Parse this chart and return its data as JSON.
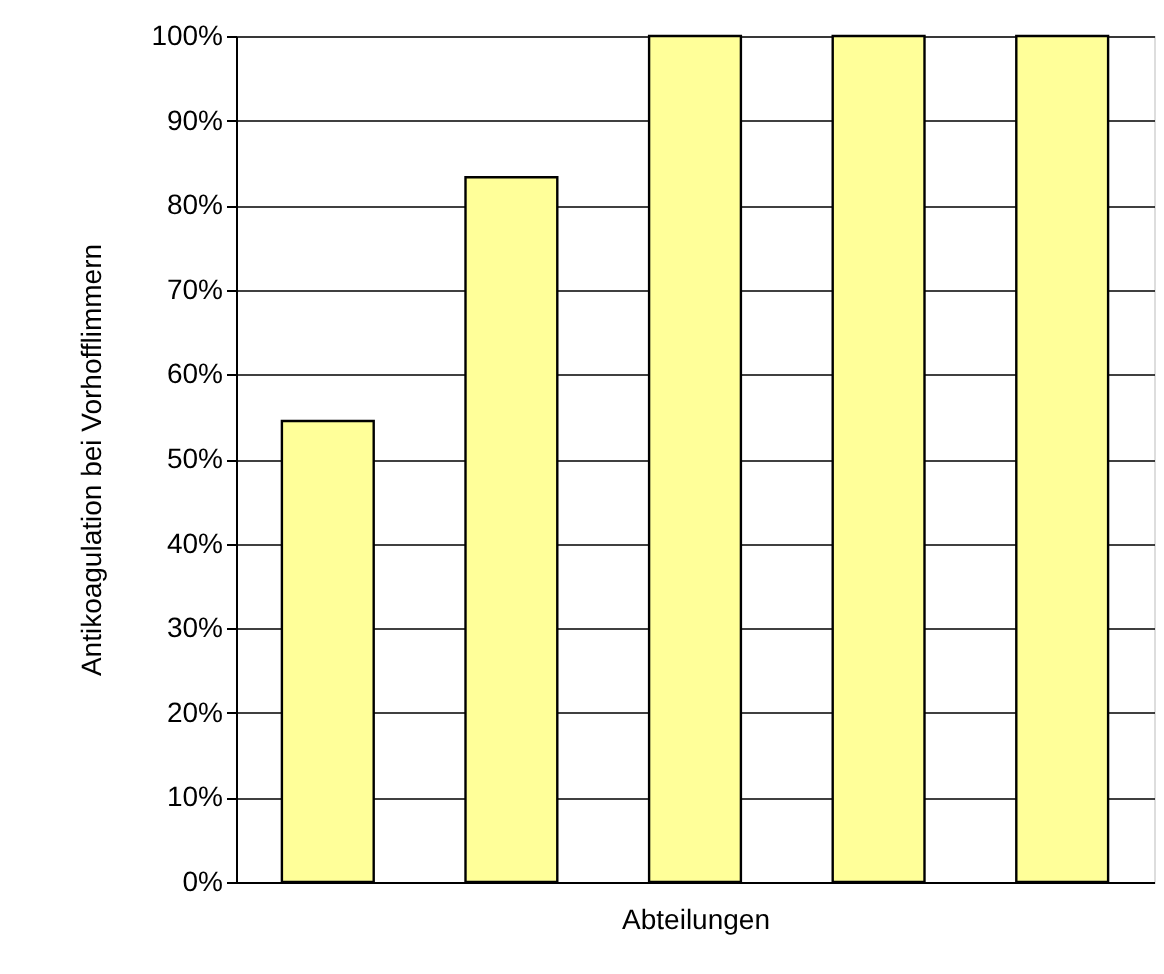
{
  "chart_data": {
    "type": "bar",
    "xlabel": "Abteilungen",
    "ylabel": "Antikoagulation bei Vorhofflimmern",
    "categories": [
      null,
      null,
      null,
      null,
      null
    ],
    "values": [
      54.5,
      83.3,
      100,
      100,
      100
    ],
    "color": "#ffff99",
    "ylim": [
      0,
      100
    ],
    "yticks": [
      {
        "value": 0,
        "label": "0%"
      },
      {
        "value": 10,
        "label": "10%"
      },
      {
        "value": 20,
        "label": "20%"
      },
      {
        "value": 30,
        "label": "30%"
      },
      {
        "value": 40,
        "label": "40%"
      },
      {
        "value": 50,
        "label": "50%"
      },
      {
        "value": 60,
        "label": "60%"
      },
      {
        "value": 70,
        "label": "70%"
      },
      {
        "value": 80,
        "label": "80%"
      },
      {
        "value": 90,
        "label": "90%"
      },
      {
        "value": 100,
        "label": "100%"
      }
    ],
    "grid": "y",
    "tick_labels": "y"
  }
}
